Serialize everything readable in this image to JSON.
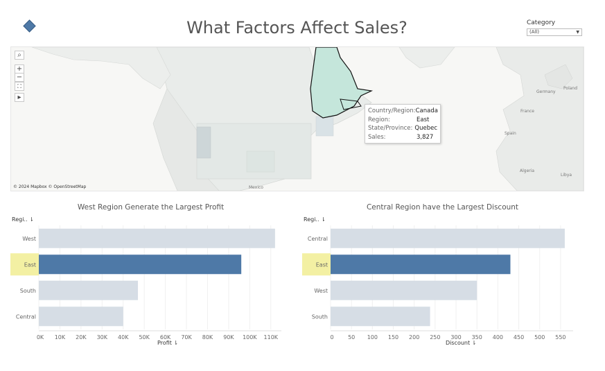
{
  "title": "What Factors Affect Sales?",
  "filter": {
    "label": "Category",
    "value": "(All)"
  },
  "map": {
    "credit": "© 2024 Mapbox © OpenStreetMap",
    "labels": {
      "mexico": "Mexico",
      "germany": "Germany",
      "poland": "Poland",
      "france": "France",
      "spain": "Spain",
      "algeria": "Algeria",
      "libya": "Libya"
    },
    "controls": {
      "search": "⌕",
      "zoom_in": "+",
      "zoom_out": "−",
      "reset": "⛶",
      "play": "▸"
    },
    "tooltip": [
      {
        "key": "Country/Region:",
        "value": "Canada"
      },
      {
        "key": "Region:",
        "value": "East"
      },
      {
        "key": "State/Province:",
        "value": "Quebec"
      },
      {
        "key": "Sales:",
        "value": "3,827"
      }
    ]
  },
  "colors": {
    "selected": "#4e79a7",
    "unselected": "#d6dde5",
    "highlight": "#f3f0a3"
  },
  "chart_data": [
    {
      "type": "bar",
      "title": "West Region Generate the Largest Profit",
      "row_header": "Regi..",
      "xlabel": "Profit",
      "categories": [
        "West",
        "East",
        "South",
        "Central"
      ],
      "values": [
        112000,
        96000,
        47000,
        40000
      ],
      "selected": "East",
      "xlim": [
        0,
        115000
      ],
      "ticks": [
        "0K",
        "10K",
        "20K",
        "30K",
        "40K",
        "50K",
        "60K",
        "70K",
        "80K",
        "90K",
        "100K",
        "110K"
      ],
      "tick_values": [
        0,
        10000,
        20000,
        30000,
        40000,
        50000,
        60000,
        70000,
        80000,
        90000,
        100000,
        110000
      ]
    },
    {
      "type": "bar",
      "title": "Central Region have the Largest Discount",
      "row_header": "Regi..",
      "xlabel": "Discount",
      "categories": [
        "Central",
        "East",
        "West",
        "South"
      ],
      "values": [
        560,
        430,
        350,
        238
      ],
      "selected": "East",
      "xlim": [
        0,
        580
      ],
      "ticks": [
        "0",
        "50",
        "100",
        "150",
        "200",
        "250",
        "300",
        "350",
        "400",
        "450",
        "500",
        "550"
      ],
      "tick_values": [
        0,
        50,
        100,
        150,
        200,
        250,
        300,
        350,
        400,
        450,
        500,
        550
      ]
    }
  ]
}
